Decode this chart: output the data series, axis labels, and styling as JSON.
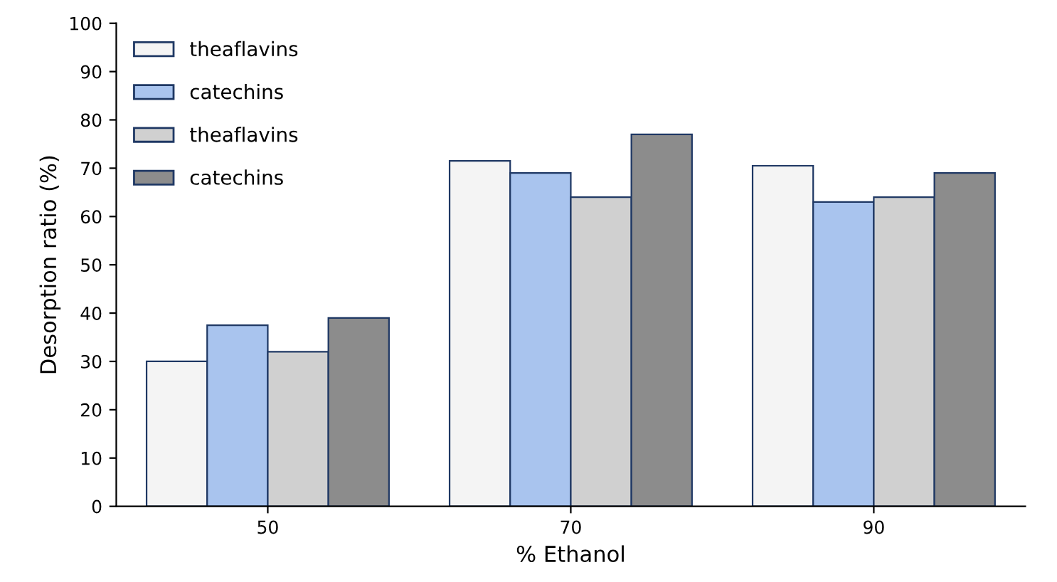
{
  "chart_data": {
    "type": "bar",
    "xlabel": "% Ethanol",
    "ylabel": "Desorption ratio (%)",
    "categories": [
      "50",
      "70",
      "90"
    ],
    "series": [
      {
        "name": "theaflavins",
        "color": "#f4f4f4",
        "values": [
          30,
          71.5,
          70.5
        ]
      },
      {
        "name": "catechins",
        "color": "#a9c4ee",
        "values": [
          37.5,
          69,
          63
        ]
      },
      {
        "name": "theaflavins",
        "color": "#d0d0d0",
        "values": [
          32,
          64,
          64
        ]
      },
      {
        "name": "catechins",
        "color": "#8c8c8c",
        "values": [
          39,
          77,
          69
        ]
      }
    ],
    "ylim": [
      0,
      100
    ],
    "yticks": [
      0,
      10,
      20,
      30,
      40,
      50,
      60,
      70,
      80,
      90,
      100
    ],
    "grid": false,
    "legend": "top left"
  }
}
